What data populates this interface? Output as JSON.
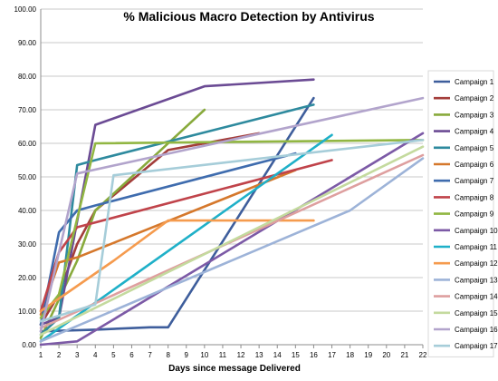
{
  "chart_data": {
    "type": "line",
    "title": "% Malicious Macro Detection by Antivirus",
    "xlabel": "Days since message Delivered",
    "ylabel": "",
    "x_ticks": [
      "1",
      "2",
      "3",
      "4",
      "5",
      "6",
      "7",
      "8",
      "9",
      "10",
      "11",
      "12",
      "13",
      "14",
      "15",
      "16",
      "17",
      "18",
      "19",
      "20",
      "21",
      "22"
    ],
    "y_ticks": [
      "0.00",
      "10.00",
      "20.00",
      "30.00",
      "40.00",
      "50.00",
      "60.00",
      "70.00",
      "80.00",
      "90.00",
      "100.00"
    ],
    "ylim": [
      0,
      100
    ],
    "xlim": [
      1,
      22
    ],
    "grid": "horizontal",
    "legend_position": "right",
    "series": [
      {
        "name": "Campaign 1",
        "color": "#3e5e9c",
        "points": [
          [
            1,
            4
          ],
          [
            4,
            4.5
          ],
          [
            7,
            5.2
          ],
          [
            8,
            5.2
          ],
          [
            16,
            73.5
          ]
        ]
      },
      {
        "name": "Campaign 2",
        "color": "#a33d3a",
        "points": [
          [
            1,
            6
          ],
          [
            2,
            15
          ],
          [
            3,
            30
          ],
          [
            4,
            40
          ],
          [
            8,
            58
          ],
          [
            13,
            63
          ]
        ]
      },
      {
        "name": "Campaign 3",
        "color": "#88aa3c",
        "points": [
          [
            1,
            2
          ],
          [
            3,
            25
          ],
          [
            4,
            40
          ],
          [
            10,
            70
          ]
        ]
      },
      {
        "name": "Campaign 4",
        "color": "#6b4b94",
        "points": [
          [
            1,
            6
          ],
          [
            2,
            8
          ],
          [
            4,
            65.5
          ],
          [
            10,
            77
          ],
          [
            16,
            79
          ]
        ]
      },
      {
        "name": "Campaign 5",
        "color": "#2e8a9e",
        "points": [
          [
            1,
            3
          ],
          [
            2,
            8
          ],
          [
            3,
            53.5
          ],
          [
            4,
            55
          ],
          [
            16,
            71.5
          ]
        ]
      },
      {
        "name": "Campaign 6",
        "color": "#d5782c",
        "points": [
          [
            1,
            9
          ],
          [
            2,
            24.5
          ],
          [
            3,
            26
          ],
          [
            15,
            52
          ]
        ]
      },
      {
        "name": "Campaign 7",
        "color": "#3f6cae",
        "points": [
          [
            1,
            6
          ],
          [
            2,
            33.5
          ],
          [
            3,
            40
          ],
          [
            4,
            41.5
          ],
          [
            15,
            57
          ]
        ]
      },
      {
        "name": "Campaign 8",
        "color": "#c0434a",
        "points": [
          [
            1,
            10
          ],
          [
            2,
            27.5
          ],
          [
            3,
            35
          ],
          [
            17,
            55
          ]
        ]
      },
      {
        "name": "Campaign 9",
        "color": "#91b642",
        "points": [
          [
            1,
            8
          ],
          [
            2,
            15
          ],
          [
            4,
            60
          ],
          [
            22,
            61
          ]
        ]
      },
      {
        "name": "Campaign 10",
        "color": "#7c5aa6",
        "points": [
          [
            1,
            0
          ],
          [
            3,
            1
          ],
          [
            22,
            63
          ]
        ]
      },
      {
        "name": "Campaign 11",
        "color": "#1fb0c8",
        "points": [
          [
            1,
            1
          ],
          [
            17,
            62.5
          ]
        ]
      },
      {
        "name": "Campaign 12",
        "color": "#f59b4e",
        "points": [
          [
            1,
            10
          ],
          [
            5,
            25
          ],
          [
            8,
            37
          ],
          [
            16,
            37
          ]
        ]
      },
      {
        "name": "Campaign 13",
        "color": "#9db3d8",
        "points": [
          [
            1,
            1
          ],
          [
            18,
            40
          ],
          [
            22,
            55.5
          ]
        ]
      },
      {
        "name": "Campaign 14",
        "color": "#de9f9f",
        "points": [
          [
            1,
            5
          ],
          [
            22,
            56.5
          ]
        ]
      },
      {
        "name": "Campaign 15",
        "color": "#c4da9e",
        "points": [
          [
            1,
            3
          ],
          [
            22,
            59
          ]
        ]
      },
      {
        "name": "Campaign 16",
        "color": "#b2a4cc",
        "points": [
          [
            1,
            4
          ],
          [
            3,
            51
          ],
          [
            22,
            73.5
          ]
        ]
      },
      {
        "name": "Campaign 17",
        "color": "#a6cdd9",
        "points": [
          [
            1,
            7
          ],
          [
            4,
            12
          ],
          [
            5,
            50.5
          ],
          [
            22,
            61
          ]
        ]
      }
    ]
  }
}
